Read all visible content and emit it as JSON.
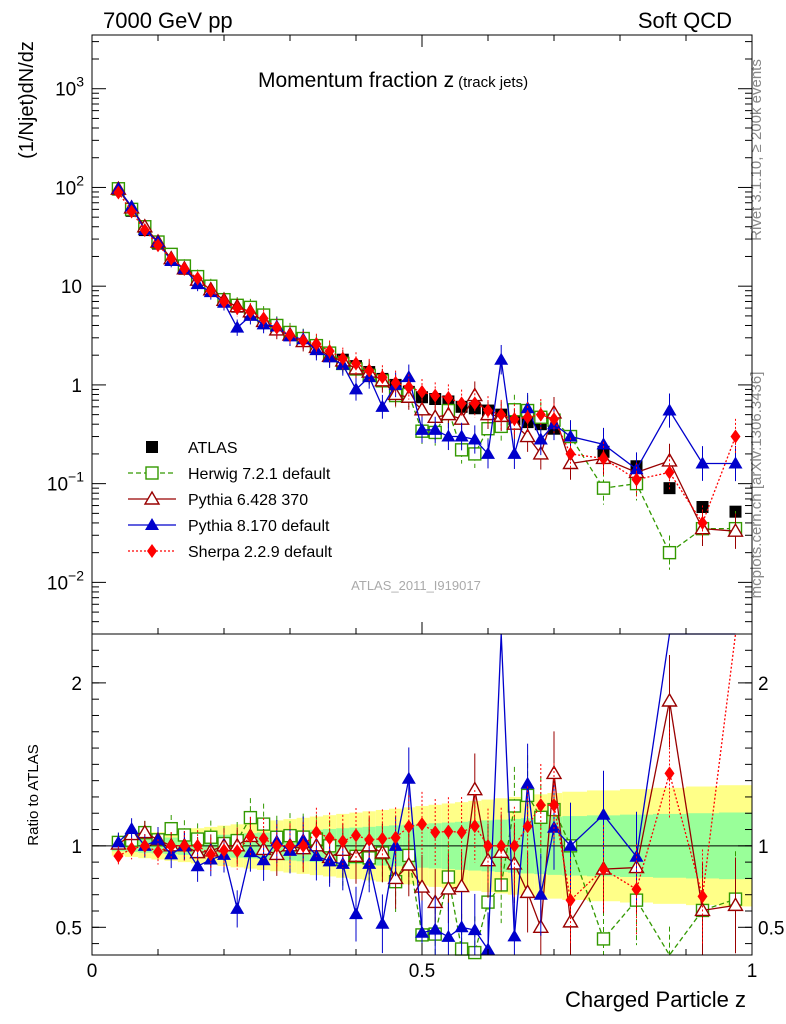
{
  "header": {
    "left": "7000 GeV pp",
    "right": "Soft QCD"
  },
  "side_labels": {
    "rivet": "Rivet 3.1.10, ≥ 200k events",
    "mcplots": "mcplots.cern.ch [arXiv:1306.3436]"
  },
  "watermark": "ATLAS_2011_I919017",
  "chart_data": {
    "type": "scatter",
    "title": "Momentum fraction z",
    "title_sub": "(track jets)",
    "xlabel": "Charged Particle z",
    "ylabel": "(1/Njet)dN/dz",
    "ratio_ylabel": "Ratio to ATLAS",
    "xlim": [
      0,
      1
    ],
    "ylim": [
      0.003,
      3500
    ],
    "yscale": "log",
    "ratio_ylim": [
      0.33,
      2.3
    ],
    "x_ticks": [
      "0",
      "0.5",
      "1"
    ],
    "y_ticks": [
      {
        "base": "10",
        "exp": "3"
      },
      {
        "base": "10",
        "exp": "2"
      },
      {
        "base": "10",
        "exp": ""
      },
      {
        "base": "1",
        "exp": ""
      },
      {
        "base": "10",
        "exp": "−1"
      },
      {
        "base": "10",
        "exp": "−2"
      }
    ],
    "ratio_ticks": [
      "0.5",
      "1",
      "2"
    ],
    "x": [
      0.04,
      0.06,
      0.08,
      0.1,
      0.12,
      0.14,
      0.16,
      0.18,
      0.2,
      0.22,
      0.24,
      0.26,
      0.28,
      0.3,
      0.32,
      0.34,
      0.36,
      0.38,
      0.4,
      0.42,
      0.44,
      0.46,
      0.48,
      0.5,
      0.52,
      0.54,
      0.56,
      0.58,
      0.6,
      0.62,
      0.64,
      0.66,
      0.68,
      0.7,
      0.725,
      0.775,
      0.825,
      0.875,
      0.925,
      0.975
    ],
    "series": [
      {
        "name": "ATLAS",
        "color": "#000000",
        "marker": "square-filled",
        "values": [
          95,
          58,
          37,
          27,
          19,
          15,
          12,
          9.5,
          7.2,
          6.2,
          5.2,
          4.5,
          3.8,
          3.2,
          2.8,
          2.4,
          2.1,
          1.8,
          1.55,
          1.35,
          1.15,
          1.0,
          0.85,
          0.75,
          0.72,
          0.68,
          0.6,
          0.58,
          0.55,
          0.5,
          0.45,
          0.42,
          0.4,
          0.36,
          0.3,
          0.21,
          0.15,
          0.09,
          0.058,
          0.052
        ]
      },
      {
        "name": "Herwig 7.2.1 default",
        "color": "#339900",
        "marker": "square-open",
        "line": "dashed",
        "values": [
          97,
          60,
          40,
          28,
          21,
          16,
          12.5,
          10,
          7.3,
          6.4,
          6.1,
          5.1,
          4.0,
          3.4,
          2.95,
          2.5,
          2.1,
          1.65,
          1.45,
          1.25,
          1.1,
          0.78,
          0.8,
          0.34,
          0.33,
          0.55,
          0.22,
          0.2,
          0.36,
          0.38,
          0.56,
          0.55,
          0.47,
          0.44,
          0.3,
          0.09,
          0.1,
          0.02,
          0.035,
          0.035
        ]
      },
      {
        "name": "Pythia 6.428 370",
        "color": "#990000",
        "marker": "triangle-open",
        "line": "solid",
        "values": [
          96,
          62,
          40,
          28,
          19,
          15,
          11.5,
          9.2,
          7.2,
          6.2,
          5.5,
          4.4,
          3.6,
          3.2,
          2.75,
          2.4,
          1.95,
          1.75,
          1.45,
          1.35,
          1.1,
          0.8,
          0.75,
          0.56,
          0.47,
          0.5,
          0.45,
          0.78,
          0.5,
          0.48,
          0.4,
          0.3,
          0.2,
          0.52,
          0.16,
          0.18,
          0.13,
          0.17,
          0.035,
          0.033
        ]
      },
      {
        "name": "Pythia 8.170 default",
        "color": "#0000cc",
        "marker": "triangle-filled",
        "line": "solid",
        "values": [
          97,
          64,
          37,
          28,
          18,
          15,
          10.5,
          8.7,
          6.8,
          3.8,
          5.0,
          4.1,
          3.9,
          3.1,
          2.9,
          2.25,
          1.9,
          1.6,
          0.9,
          1.2,
          0.6,
          1.0,
          1.2,
          0.35,
          0.35,
          0.3,
          0.3,
          0.28,
          0.2,
          1.8,
          0.2,
          0.58,
          0.28,
          0.4,
          0.3,
          0.25,
          0.14,
          0.55,
          0.16,
          0.16
        ]
      },
      {
        "name": "Sherpa 2.2.9 default",
        "color": "#ff0000",
        "marker": "diamond-filled",
        "line": "dotted",
        "values": [
          89,
          57,
          37,
          26,
          19,
          15,
          12,
          9.0,
          7.0,
          6.0,
          5.5,
          4.7,
          3.8,
          3.2,
          2.8,
          2.6,
          2.2,
          1.85,
          1.65,
          1.4,
          1.2,
          1.05,
          0.95,
          0.85,
          0.78,
          0.74,
          0.65,
          0.65,
          0.55,
          0.5,
          0.45,
          0.47,
          0.5,
          0.45,
          0.2,
          0.18,
          0.11,
          0.13,
          0.04,
          0.3
        ]
      }
    ]
  }
}
